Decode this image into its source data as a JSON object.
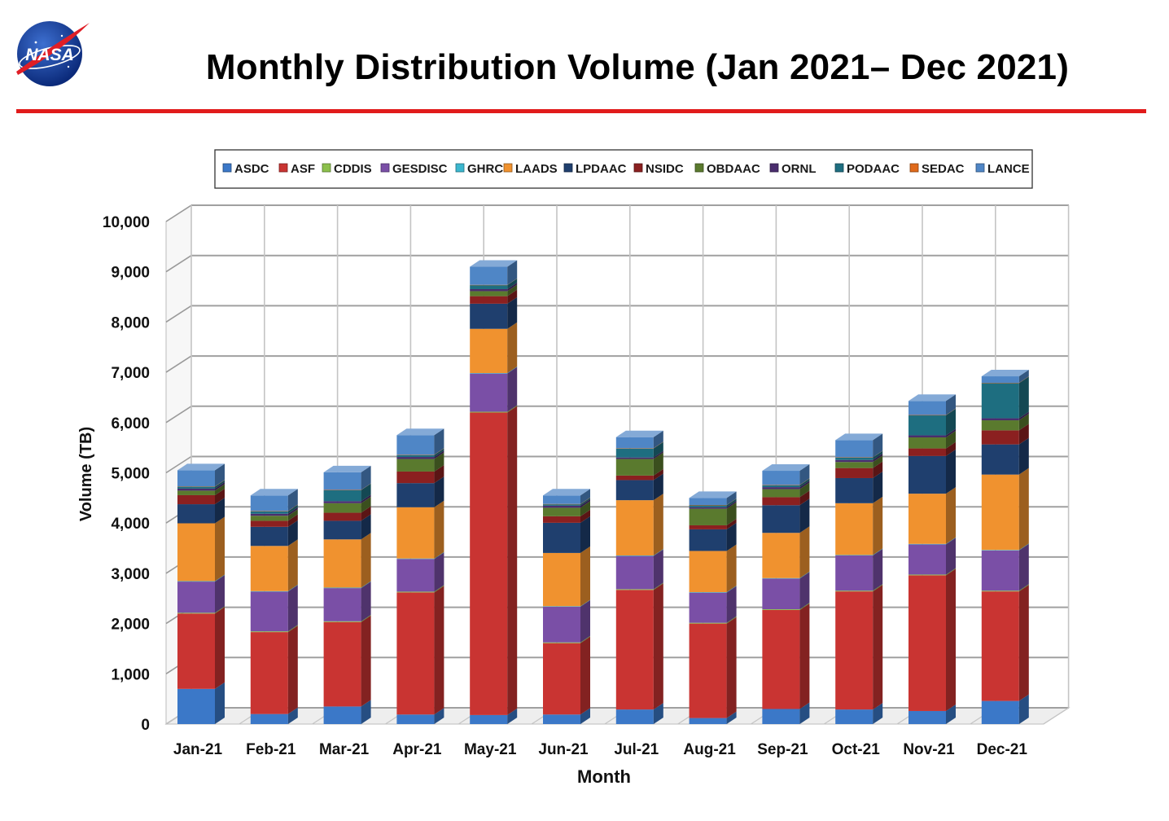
{
  "header": {
    "title": "Monthly Distribution Volume (Jan 2021– Dec 2021)",
    "logo_text": "NASA"
  },
  "chart_data": {
    "type": "bar",
    "stacked": true,
    "categories": [
      "Jan-21",
      "Feb-21",
      "Mar-21",
      "Apr-21",
      "May-21",
      "Jun-21",
      "Jul-21",
      "Aug-21",
      "Sep-21",
      "Oct-21",
      "Nov-21",
      "Dec-21"
    ],
    "xlabel": "Month",
    "ylabel": "Volume (TB)",
    "ylim": [
      0,
      10000
    ],
    "yticks": [
      0,
      1000,
      2000,
      3000,
      4000,
      5000,
      6000,
      7000,
      8000,
      9000,
      10000
    ],
    "ytick_labels": [
      "0",
      "1,000",
      "2,000",
      "3,000",
      "4,000",
      "5,000",
      "6,000",
      "7,000",
      "8,000",
      "9,000",
      "10,000"
    ],
    "grid": true,
    "legend_position": "top",
    "series": [
      {
        "name": "ASDC",
        "color": "#3b78c8",
        "values": [
          700,
          200,
          350,
          190,
          180,
          190,
          290,
          120,
          300,
          290,
          260,
          460
        ]
      },
      {
        "name": "ASF",
        "color": "#c93432",
        "values": [
          1500,
          1630,
          1680,
          2430,
          6020,
          1420,
          2380,
          1880,
          1970,
          2350,
          2700,
          2180
        ]
      },
      {
        "name": "CDDIS",
        "color": "#8cc04c",
        "values": [
          15,
          15,
          15,
          15,
          15,
          15,
          15,
          15,
          15,
          15,
          15,
          15
        ]
      },
      {
        "name": "GESDISC",
        "color": "#7a4fa6",
        "values": [
          620,
          790,
          660,
          650,
          760,
          710,
          660,
          600,
          610,
          700,
          600,
          800
        ]
      },
      {
        "name": "GHRC",
        "color": "#3bb7cf",
        "values": [
          10,
          10,
          10,
          10,
          10,
          10,
          10,
          10,
          10,
          10,
          10,
          10
        ]
      },
      {
        "name": "LAADS",
        "color": "#f0922f",
        "values": [
          1150,
          900,
          960,
          1020,
          880,
          1060,
          1100,
          820,
          900,
          1030,
          1000,
          1500
        ]
      },
      {
        "name": "LPDAAC",
        "color": "#1f3f6e",
        "values": [
          380,
          380,
          370,
          480,
          500,
          600,
          400,
          430,
          550,
          500,
          750,
          600
        ]
      },
      {
        "name": "NSIDC",
        "color": "#8b2020",
        "values": [
          180,
          120,
          160,
          230,
          150,
          130,
          90,
          80,
          160,
          200,
          150,
          280
        ]
      },
      {
        "name": "OBDAAC",
        "color": "#5a7a2e",
        "values": [
          90,
          100,
          190,
          250,
          100,
          170,
          330,
          330,
          160,
          120,
          220,
          200
        ]
      },
      {
        "name": "ORNL",
        "color": "#4a2d6e",
        "values": [
          40,
          40,
          40,
          40,
          40,
          40,
          30,
          30,
          40,
          40,
          40,
          40
        ]
      },
      {
        "name": "PODAAC",
        "color": "#1e6e80",
        "values": [
          40,
          50,
          220,
          40,
          80,
          30,
          180,
          40,
          40,
          50,
          400,
          700
        ]
      },
      {
        "name": "SEDAC",
        "color": "#e06a1b",
        "values": [
          5,
          5,
          5,
          5,
          5,
          5,
          5,
          5,
          5,
          5,
          5,
          5
        ]
      },
      {
        "name": "LANCE",
        "color": "#4f86c6",
        "values": [
          320,
          310,
          350,
          390,
          360,
          170,
          220,
          140,
          280,
          340,
          280,
          130
        ]
      }
    ]
  }
}
